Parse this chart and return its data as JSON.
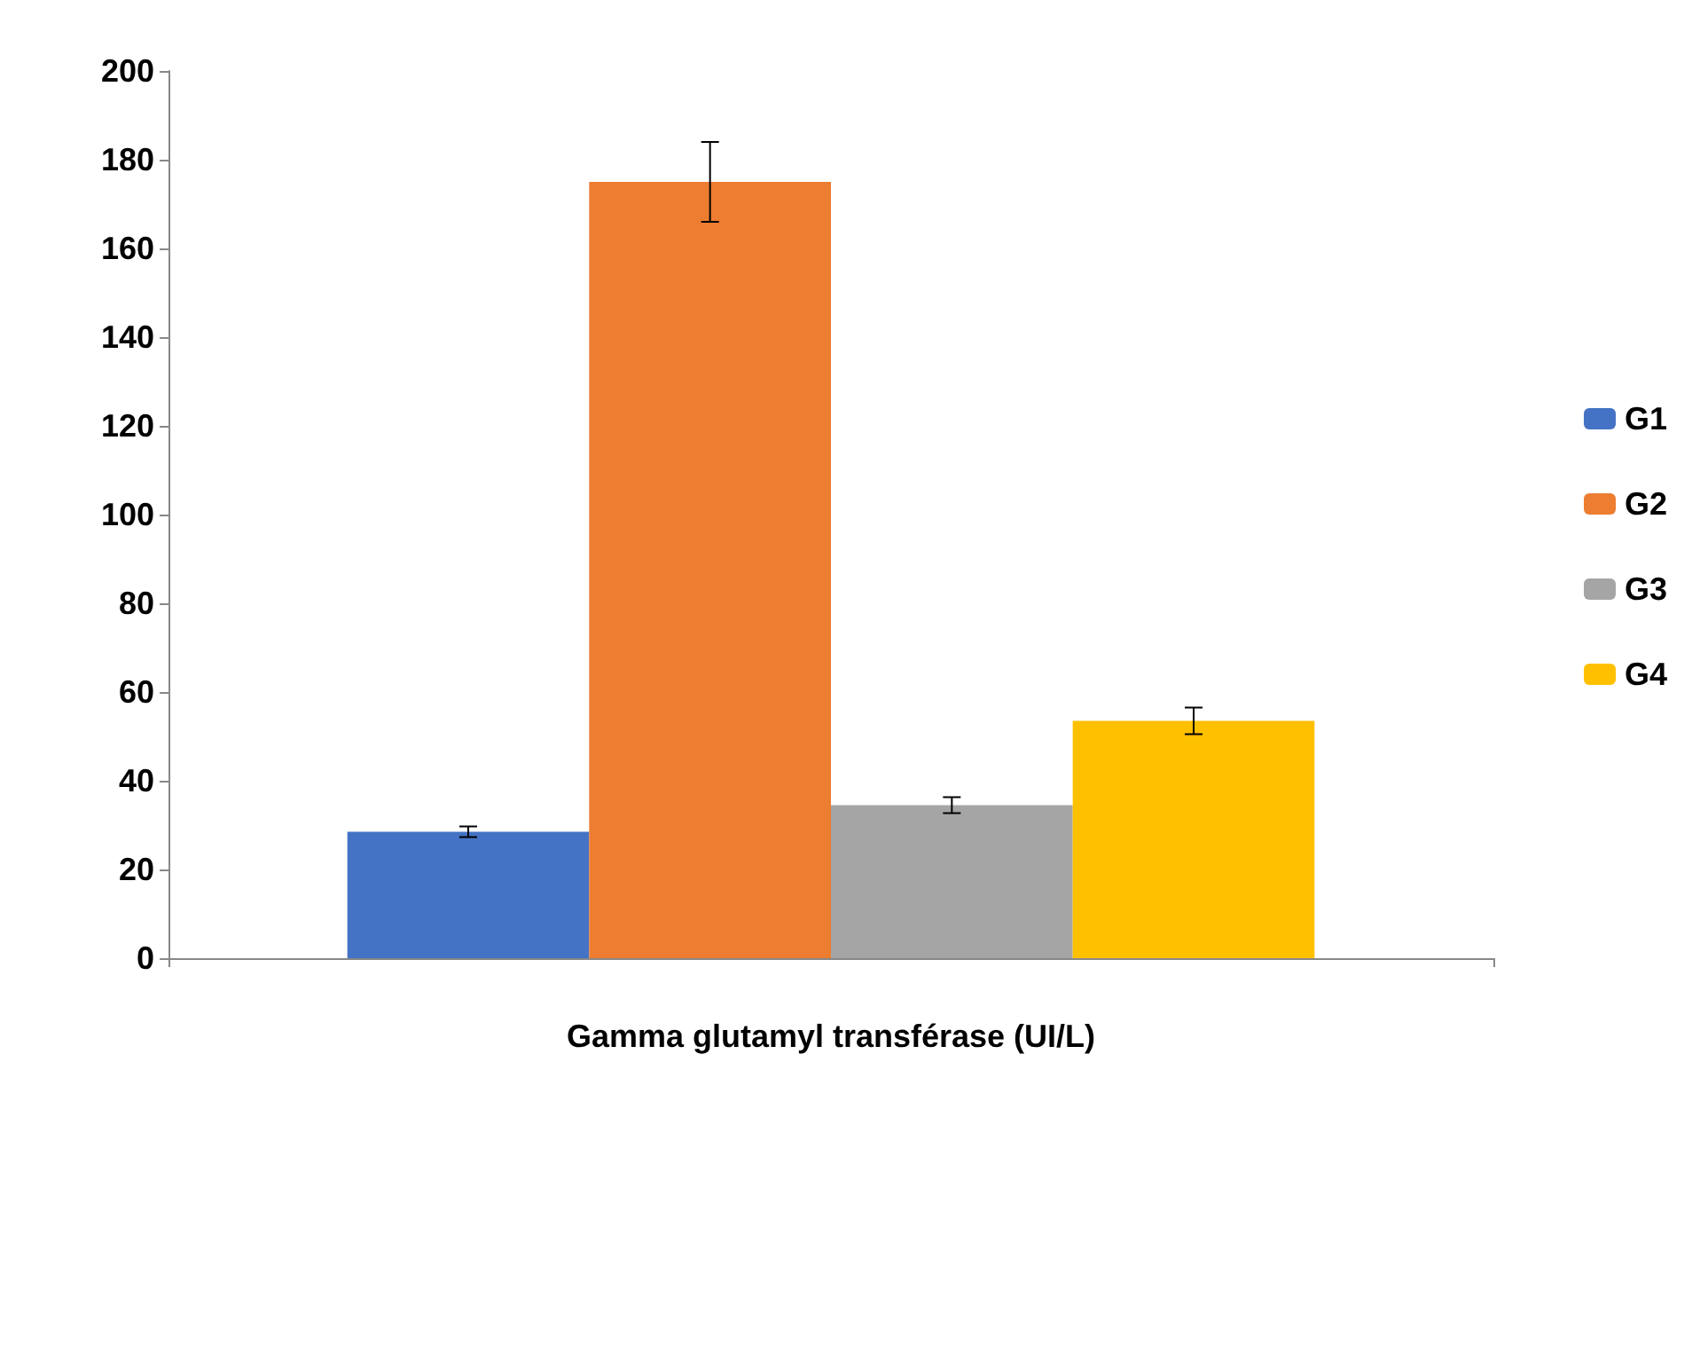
{
  "chart_data": {
    "type": "bar",
    "xlabel": "Gamma glutamyl transférase (UI/L)",
    "categories": [
      null
    ],
    "series": [
      {
        "name": "G1",
        "color": "#4472c4",
        "values": [
          28.5
        ],
        "errors": [
          1.2
        ]
      },
      {
        "name": "G2",
        "color": "#ed7d31",
        "values": [
          175
        ],
        "errors": [
          9
        ]
      },
      {
        "name": "G3",
        "color": "#a5a5a5",
        "values": [
          34.5
        ],
        "errors": [
          1.8
        ]
      },
      {
        "name": "G4",
        "color": "#ffc000",
        "values": [
          53.5
        ],
        "errors": [
          3
        ]
      }
    ],
    "ylim": [
      0,
      200
    ],
    "yticks": [
      0,
      20,
      40,
      60,
      80,
      100,
      120,
      140,
      160,
      180,
      200
    ],
    "grid": false,
    "legend": "right"
  }
}
